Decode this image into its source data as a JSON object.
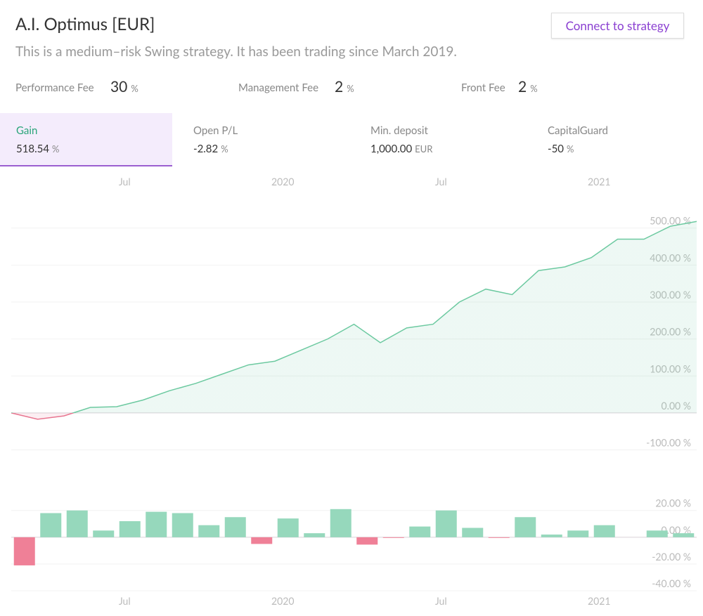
{
  "header": {
    "title": "A.I. Optimus [EUR]",
    "subtitle": "This is a medium–risk Swing strategy. It has been trading since March 2019.",
    "button": "Connect to strategy"
  },
  "fees": [
    {
      "label": "Performance Fee",
      "value": "30",
      "unit": "%"
    },
    {
      "label": "Management Fee",
      "value": "2",
      "unit": "%"
    },
    {
      "label": "Front Fee",
      "value": "2",
      "unit": "%"
    }
  ],
  "stats": [
    {
      "label": "Gain",
      "value": "518.54",
      "unit": "%"
    },
    {
      "label": "Open P/L",
      "value": "-2.82",
      "unit": "%"
    },
    {
      "label": "Min. deposit",
      "value": "1,000.00",
      "unit": "EUR"
    },
    {
      "label": "CapitalGuard",
      "value": "-50",
      "unit": "%"
    }
  ],
  "chart_data": [
    {
      "type": "line",
      "color_positive": "#6cc9a0",
      "color_negative": "#e87590",
      "x": [
        "2019-03",
        "2019-04",
        "2019-05",
        "2019-06",
        "2019-07",
        "2019-08",
        "2019-09",
        "2019-10",
        "2019-11",
        "2019-12",
        "2020-01",
        "2020-02",
        "2020-03",
        "2020-04",
        "2020-05",
        "2020-06",
        "2020-07",
        "2020-08",
        "2020-09",
        "2020-10",
        "2020-11",
        "2020-12",
        "2021-01",
        "2021-02",
        "2021-03",
        "2021-04",
        "2021-05"
      ],
      "values": [
        0,
        -17,
        -8,
        15,
        17,
        35,
        60,
        80,
        105,
        130,
        140,
        170,
        200,
        240,
        190,
        230,
        240,
        300,
        335,
        320,
        385,
        395,
        420,
        470,
        470,
        505,
        518
      ],
      "xlim": [
        "2019-03",
        "2021-05"
      ],
      "xticks": [
        {
          "value": "2019-07",
          "label": "Jul"
        },
        {
          "value": "2020-01",
          "label": "2020"
        },
        {
          "value": "2020-07",
          "label": "Jul"
        },
        {
          "value": "2021-01",
          "label": "2021"
        }
      ],
      "ylim": [
        -118,
        585
      ],
      "yticks": [
        {
          "value": -100,
          "label": "-100.00 %"
        },
        {
          "value": 0,
          "label": "0.00 %"
        },
        {
          "value": 100,
          "label": "100.00 %"
        },
        {
          "value": 200,
          "label": "200.00 %"
        },
        {
          "value": 300,
          "label": "300.00 %"
        },
        {
          "value": 400,
          "label": "400.00 %"
        },
        {
          "value": 500,
          "label": "500.00 %"
        }
      ],
      "grid": true
    },
    {
      "type": "bar",
      "color_positive": "#96d8bc",
      "color_negative": "#ef8097",
      "x": [
        "2019-03",
        "2019-04",
        "2019-05",
        "2019-06",
        "2019-07",
        "2019-08",
        "2019-09",
        "2019-10",
        "2019-11",
        "2019-12",
        "2020-01",
        "2020-02",
        "2020-03",
        "2020-04",
        "2020-05",
        "2020-06",
        "2020-07",
        "2020-08",
        "2020-09",
        "2020-10",
        "2020-11",
        "2020-12",
        "2021-01",
        "2021-02",
        "2021-03",
        "2021-04"
      ],
      "values": [
        -21,
        18,
        20,
        5,
        12,
        19,
        18,
        9,
        15,
        -5,
        14,
        3,
        21,
        -5.5,
        -0.5,
        8,
        20,
        7,
        -0.5,
        15,
        2,
        5,
        9,
        0,
        5,
        3
      ],
      "xlim": [
        "2019-03",
        "2021-05"
      ],
      "xticks": [
        {
          "value": "2019-07",
          "label": "Jul"
        },
        {
          "value": "2020-01",
          "label": "2020"
        },
        {
          "value": "2020-07",
          "label": "Jul"
        },
        {
          "value": "2021-01",
          "label": "2021"
        }
      ],
      "ylim": [
        -42,
        34
      ],
      "yticks": [
        {
          "value": -40,
          "label": "-40.00 %"
        },
        {
          "value": -20,
          "label": "-20.00 %"
        },
        {
          "value": 0,
          "label": "0.00 %"
        },
        {
          "value": 20,
          "label": "20.00 %"
        }
      ],
      "grid": true
    }
  ]
}
